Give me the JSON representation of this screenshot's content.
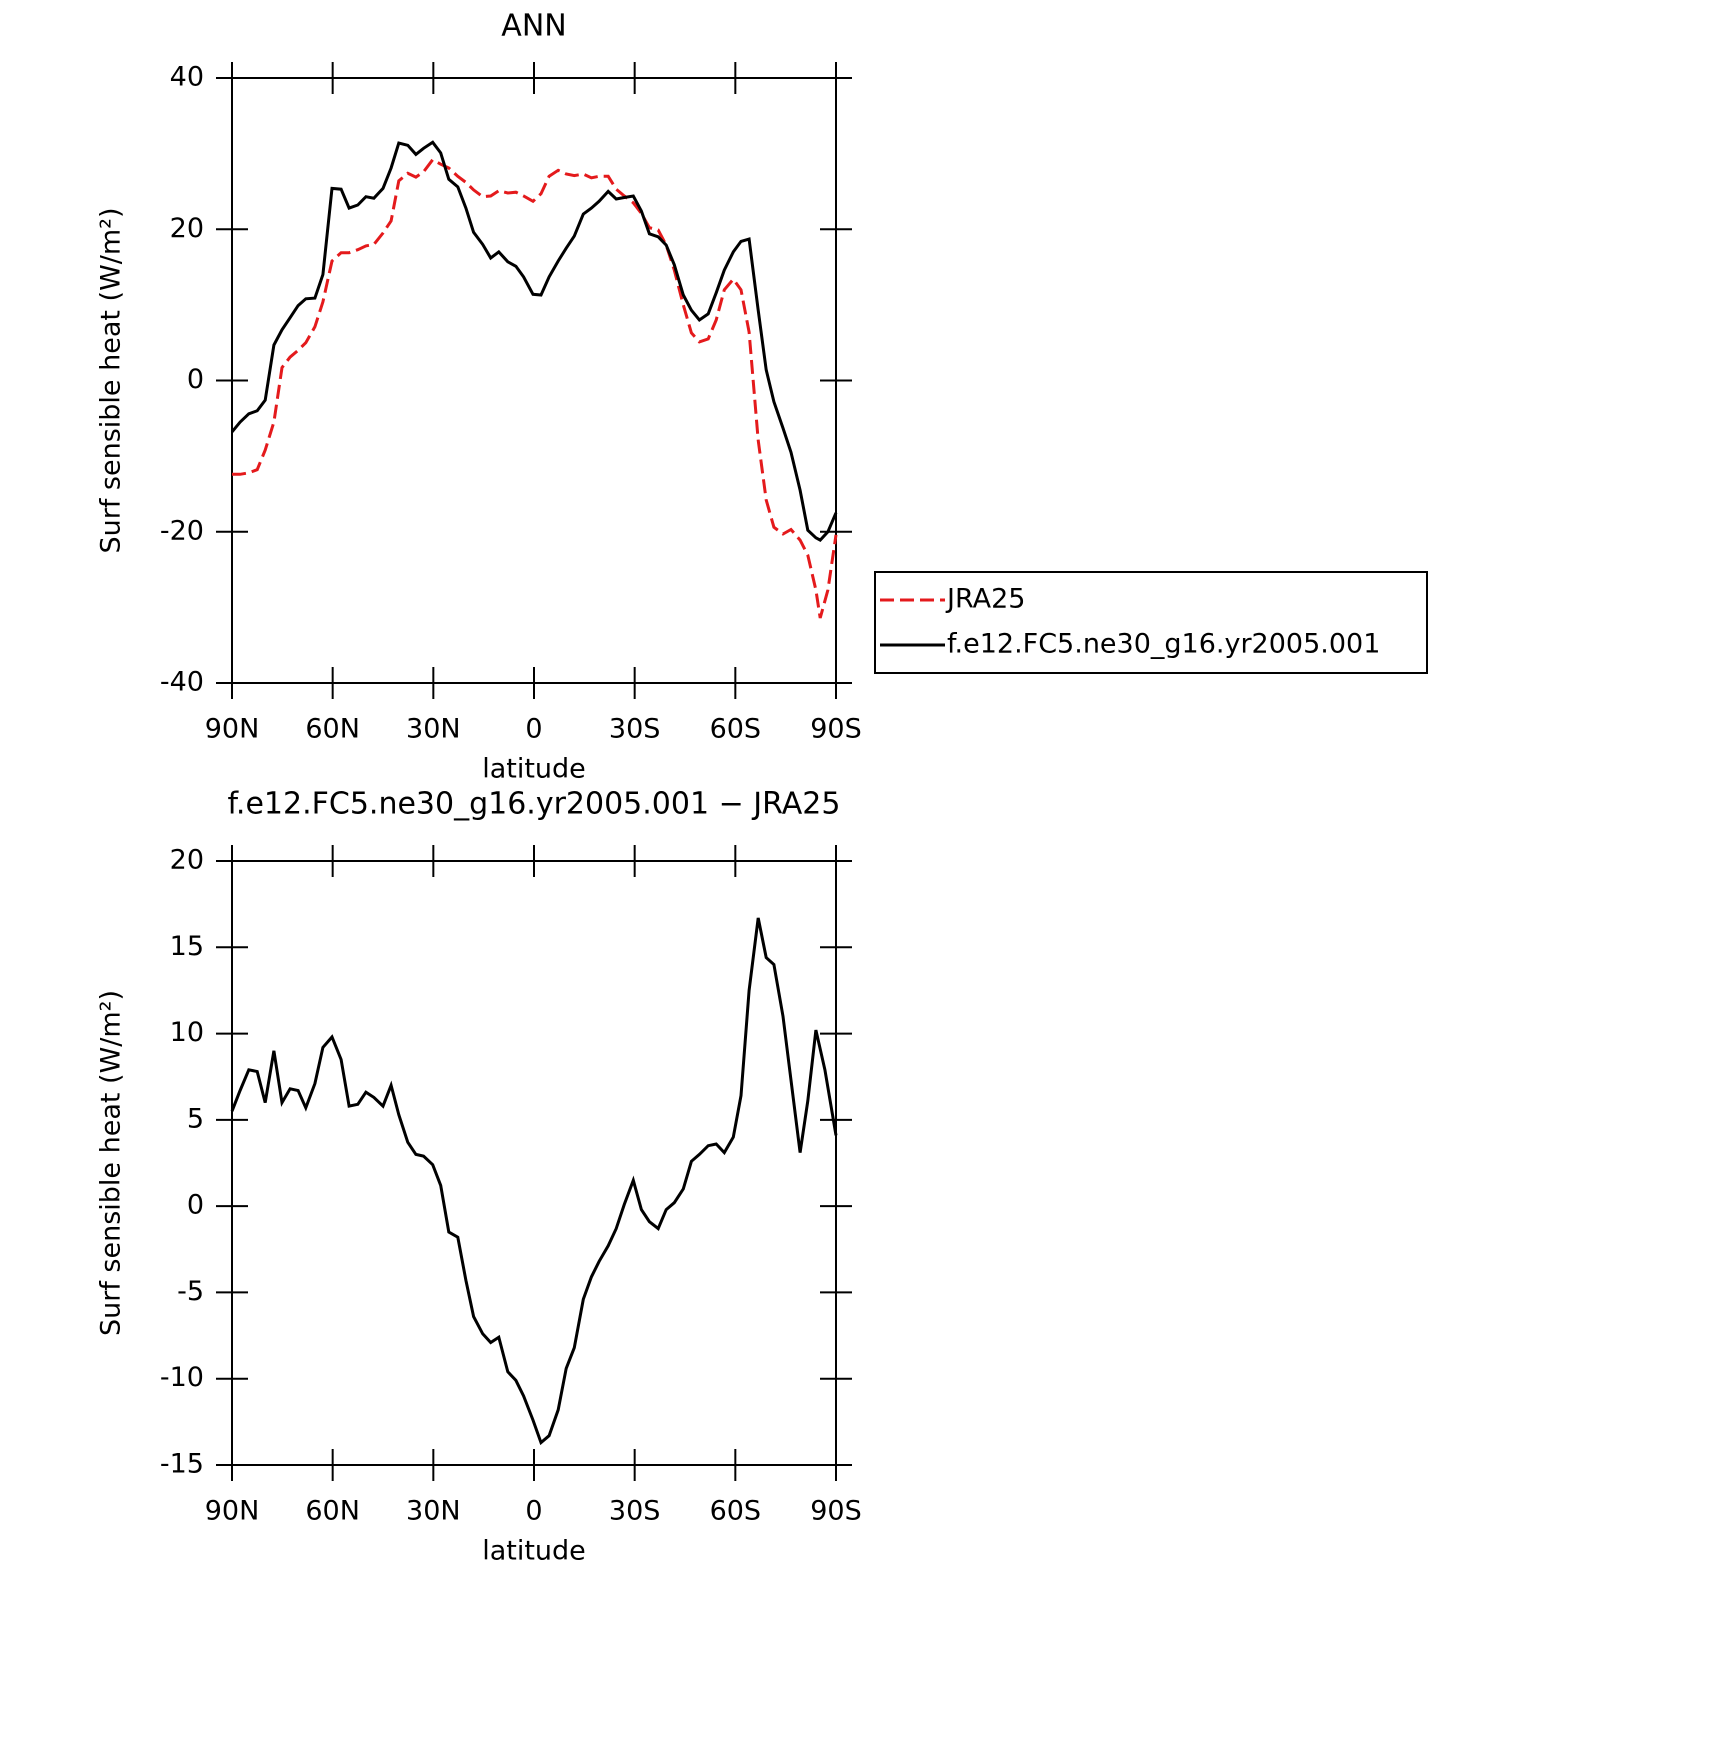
{
  "chart_data": [
    {
      "type": "line",
      "title": "ANN",
      "x_label": "latitude",
      "y_label": "Surf sensible heat (W/m²)",
      "x": [
        90,
        87.6,
        85,
        82.5,
        80.1,
        77.5,
        75.1,
        72.7,
        70.3,
        68,
        65.3,
        62.9,
        60.2,
        57.5,
        55.1,
        52.5,
        50.1,
        47.7,
        45,
        42.6,
        40.3,
        37.6,
        35.2,
        32.9,
        30.2,
        27.8,
        25.4,
        22.7,
        20.3,
        18,
        15.3,
        12.9,
        10.5,
        7.8,
        5.4,
        3.1,
        0.3,
        -2.1,
        -4.5,
        -7.2,
        -9.6,
        -12,
        -14.7,
        -17.1,
        -19.4,
        -22.1,
        -24.5,
        -26.9,
        -29.6,
        -32,
        -34.4,
        -37,
        -39.4,
        -41.8,
        -44.5,
        -46.9,
        -49.3,
        -51.9,
        -54.3,
        -56.7,
        -59.4,
        -61.7,
        -64.1,
        -66.8,
        -69.2,
        -71.5,
        -74.2,
        -76.6,
        -79.3,
        -81.6,
        -84,
        -85.3,
        -87.6,
        -90
      ],
      "series": [
        {
          "name": "JRA25",
          "color": "#e41a1c",
          "line_style": "dashed",
          "values": [
            -12.4,
            -12.4,
            -12.2,
            -11.8,
            -9.2,
            -5.5,
            1.7,
            3.1,
            4.0,
            5.0,
            7.1,
            10.4,
            15.8,
            16.9,
            16.9,
            17.3,
            17.8,
            18.0,
            19.5,
            21.1,
            26.4,
            27.4,
            26.9,
            27.6,
            29.2,
            28.6,
            28.1,
            27.0,
            26.2,
            25.2,
            24.3,
            24.4,
            25.1,
            24.8,
            24.9,
            24.4,
            23.7,
            24.7,
            27.0,
            27.8,
            27.3,
            27.1,
            27.3,
            26.8,
            27.0,
            27.0,
            25.3,
            24.4,
            23.5,
            22.1,
            20.2,
            19.9,
            17.9,
            14.6,
            10.0,
            6.3,
            5.1,
            5.5,
            8.0,
            12.0,
            13.4,
            12.0,
            6.4,
            -7.9,
            -15.8,
            -19.4,
            -20.3,
            -19.7,
            -21.1,
            -23.1,
            -27.7,
            -31.4,
            -27.7,
            -20.4
          ]
        },
        {
          "name": "f.e12.FC5.ne30_g16.yr2005.001",
          "color": "#000000",
          "line_style": "solid",
          "values": [
            -6.8,
            -5.5,
            -4.4,
            -4.0,
            -2.6,
            4.7,
            6.7,
            8.3,
            9.9,
            10.8,
            10.9,
            14.0,
            25.4,
            25.3,
            22.8,
            23.2,
            24.3,
            24.1,
            25.4,
            28.1,
            31.4,
            31.1,
            29.9,
            30.7,
            31.5,
            30.1,
            26.6,
            25.6,
            22.8,
            19.6,
            18.0,
            16.2,
            17.0,
            15.7,
            15.1,
            13.7,
            11.4,
            11.3,
            13.7,
            15.8,
            17.5,
            19.1,
            22.0,
            22.8,
            23.7,
            25.0,
            24.0,
            24.2,
            24.4,
            22.4,
            19.4,
            19.0,
            17.9,
            15.3,
            11.3,
            9.3,
            8.0,
            8.8,
            11.6,
            14.6,
            17.0,
            18.4,
            18.7,
            9.3,
            1.4,
            -2.8,
            -6.3,
            -9.5,
            -14.5,
            -19.8,
            -20.8,
            -21.1,
            -20.0,
            -17.5
          ]
        }
      ],
      "xlim": [
        90,
        -90
      ],
      "xticks": [
        {
          "value": 90,
          "label": "90N"
        },
        {
          "value": 60,
          "label": "60N"
        },
        {
          "value": 30,
          "label": "30N"
        },
        0,
        {
          "value": -30,
          "label": "30S"
        },
        {
          "value": -60,
          "label": "60S"
        },
        {
          "value": -90,
          "label": "90S"
        }
      ],
      "ylim": [
        -40,
        40
      ],
      "yticks": [
        -40,
        -20,
        0,
        20,
        40
      ],
      "legend": "right"
    },
    {
      "type": "line",
      "title": "f.e12.FC5.ne30_g16.yr2005.001 − JRA25",
      "x_label": "latitude",
      "y_label": "Surf sensible heat (W/m²)",
      "x": [
        90,
        87.6,
        85,
        82.5,
        80.1,
        77.5,
        75.1,
        72.7,
        70.3,
        68,
        65.3,
        62.9,
        60.2,
        57.5,
        55.1,
        52.5,
        50.1,
        47.7,
        45,
        42.6,
        40.3,
        37.6,
        35.2,
        32.9,
        30.2,
        27.8,
        25.4,
        22.7,
        20.3,
        18,
        15.3,
        12.9,
        10.5,
        7.8,
        5.4,
        3.1,
        0.3,
        -2.1,
        -4.5,
        -7.2,
        -9.6,
        -12,
        -14.7,
        -17.1,
        -19.4,
        -22.1,
        -24.5,
        -26.9,
        -29.6,
        -32,
        -34.4,
        -37,
        -39.4,
        -41.8,
        -44.5,
        -46.9,
        -49.3,
        -51.9,
        -54.3,
        -56.7,
        -59.4,
        -61.7,
        -64.1,
        -66.8,
        -69.2,
        -71.5,
        -74.2,
        -76.6,
        -79.3,
        -81.6,
        -84,
        -86.7,
        -90
      ],
      "color": "#000000",
      "values": [
        5.5,
        6.7,
        7.9,
        7.8,
        6.0,
        9.0,
        6.0,
        6.8,
        6.7,
        5.7,
        7.1,
        9.2,
        9.8,
        8.5,
        5.8,
        5.9,
        6.6,
        6.3,
        5.8,
        7.0,
        5.3,
        3.7,
        3.0,
        2.9,
        2.4,
        1.2,
        -1.5,
        -1.8,
        -4.3,
        -6.4,
        -7.4,
        -7.9,
        -7.6,
        -9.6,
        -10.1,
        -11.0,
        -12.4,
        -13.7,
        -13.3,
        -11.8,
        -9.4,
        -8.2,
        -5.4,
        -4.1,
        -3.2,
        -2.3,
        -1.3,
        0.1,
        1.5,
        -0.2,
        -0.9,
        -1.3,
        -0.2,
        0.2,
        1.0,
        2.6,
        3.0,
        3.5,
        3.6,
        3.1,
        4.0,
        6.4,
        12.5,
        16.7,
        14.4,
        14.0,
        11.0,
        7.3,
        3.1,
        6.1,
        10.2,
        7.9,
        4.1
      ],
      "xlim": [
        90,
        -90
      ],
      "xticks": [
        {
          "value": 90,
          "label": "90N"
        },
        {
          "value": 60,
          "label": "60N"
        },
        {
          "value": 30,
          "label": "30N"
        },
        0,
        {
          "value": -30,
          "label": "30S"
        },
        {
          "value": -60,
          "label": "60S"
        },
        {
          "value": -90,
          "label": "90S"
        }
      ],
      "ylim": [
        -15,
        20
      ],
      "yticks": [
        -15,
        -10,
        -5,
        0,
        5,
        10,
        15,
        20
      ]
    }
  ]
}
